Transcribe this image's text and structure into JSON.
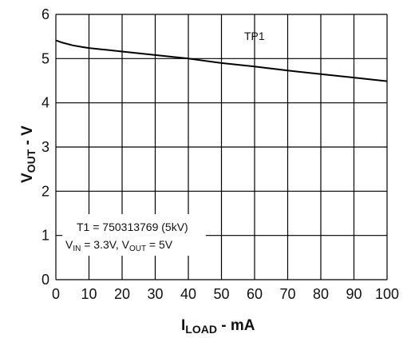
{
  "chart_data": {
    "type": "line",
    "xlabel": {
      "main": "I",
      "sub": "LOAD",
      "rest": " - mA"
    },
    "ylabel": {
      "main": "V",
      "sub": "OUT",
      "rest": " - V"
    },
    "xlim": [
      0,
      100
    ],
    "ylim": [
      0,
      6
    ],
    "xticks": [
      0,
      10,
      20,
      30,
      40,
      50,
      60,
      70,
      80,
      90,
      100
    ],
    "yticks": [
      0,
      1,
      2,
      3,
      4,
      5,
      6
    ],
    "grid": true,
    "series": [
      {
        "name": "TP1",
        "x": [
          0,
          2,
          5,
          8,
          10,
          15,
          20,
          30,
          40,
          50,
          60,
          70,
          80,
          90,
          100
        ],
        "y": [
          5.41,
          5.36,
          5.3,
          5.26,
          5.24,
          5.2,
          5.16,
          5.08,
          5.0,
          4.9,
          4.82,
          4.73,
          4.65,
          4.57,
          4.49
        ]
      }
    ],
    "annotations": {
      "line1": "T1 = 750313769 (5kV)",
      "line2": {
        "a": "V",
        "a_sub": "IN",
        "b": " = 3.3V, V",
        "b_sub": "OUT",
        "c": " = 5V"
      }
    }
  }
}
